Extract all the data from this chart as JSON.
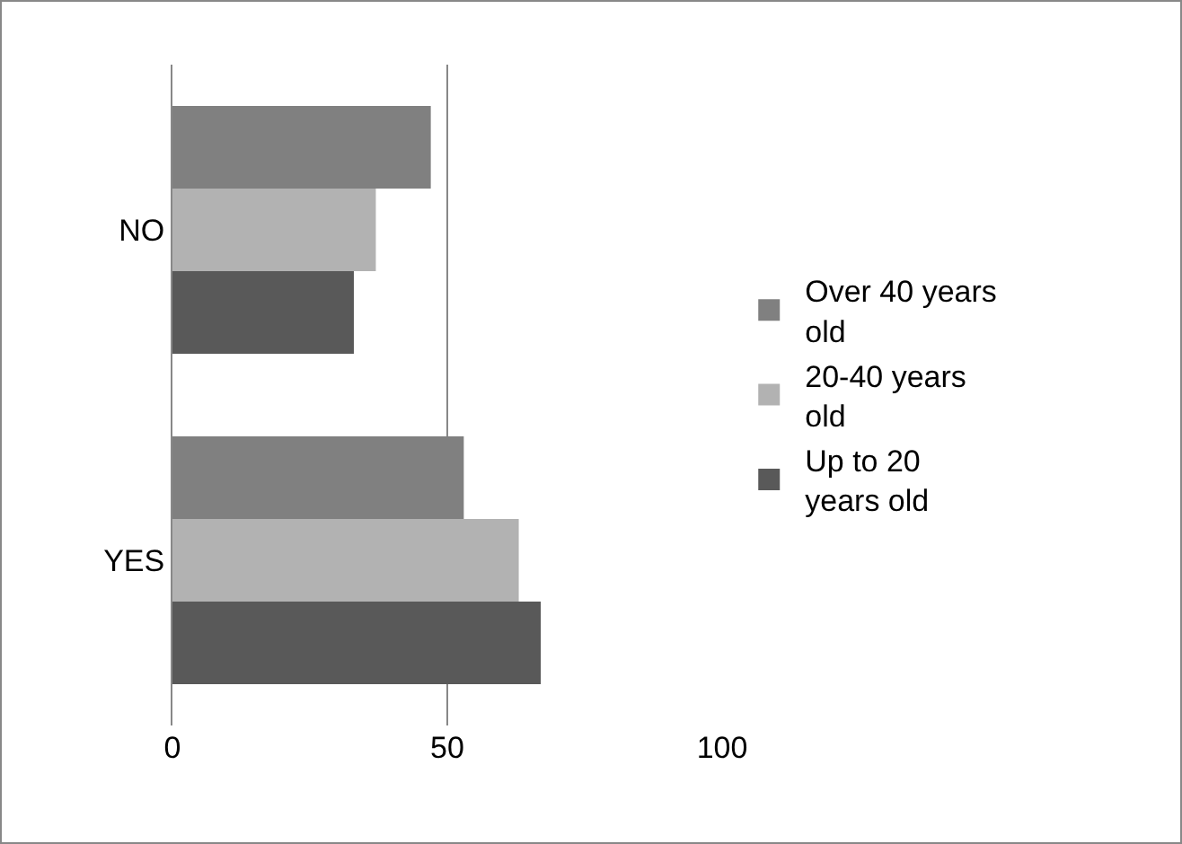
{
  "chart_data": {
    "type": "bar",
    "orientation": "horizontal",
    "categories": [
      "NO",
      "YES"
    ],
    "series": [
      {
        "name": "Over 40 years old",
        "color": "#808080",
        "values": [
          47,
          53
        ]
      },
      {
        "name": "20-40 years old",
        "color": "#b2b2b2",
        "values": [
          37,
          63
        ]
      },
      {
        "name": "Up to 20 years old",
        "color": "#595959",
        "values": [
          33,
          67
        ]
      }
    ],
    "xlim": [
      0,
      100
    ],
    "xticks": [
      0,
      50,
      100
    ],
    "grid": "x",
    "legend": "right"
  }
}
